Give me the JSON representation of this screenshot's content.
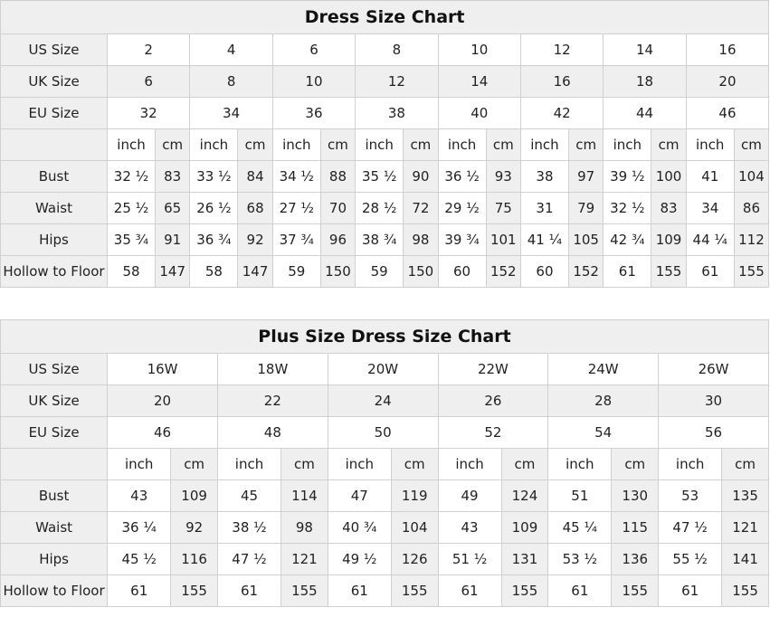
{
  "tables": [
    {
      "title": "Dress Size Chart",
      "us_label": "US Size",
      "uk_label": "UK Size",
      "eu_label": "EU Size",
      "us": [
        "2",
        "4",
        "6",
        "8",
        "10",
        "12",
        "14",
        "16"
      ],
      "uk": [
        "6",
        "8",
        "10",
        "12",
        "14",
        "16",
        "18",
        "20"
      ],
      "eu": [
        "32",
        "34",
        "36",
        "38",
        "40",
        "42",
        "44",
        "46"
      ],
      "units": [
        "inch",
        "cm"
      ],
      "measurements": [
        {
          "label": "Bust",
          "values": [
            "32 ½",
            "83",
            "33 ½",
            "84",
            "34 ½",
            "88",
            "35 ½",
            "90",
            "36 ½",
            "93",
            "38",
            "97",
            "39 ½",
            "100",
            "41",
            "104"
          ]
        },
        {
          "label": "Waist",
          "values": [
            "25 ½",
            "65",
            "26 ½",
            "68",
            "27 ½",
            "70",
            "28 ½",
            "72",
            "29 ½",
            "75",
            "31",
            "79",
            "32 ½",
            "83",
            "34",
            "86"
          ]
        },
        {
          "label": "Hips",
          "values": [
            "35 ¾",
            "91",
            "36 ¾",
            "92",
            "37 ¾",
            "96",
            "38 ¾",
            "98",
            "39 ¾",
            "101",
            "41 ¼",
            "105",
            "42 ¾",
            "109",
            "44 ¼",
            "112"
          ]
        },
        {
          "label": "Hollow to Floor",
          "values": [
            "58",
            "147",
            "58",
            "147",
            "59",
            "150",
            "59",
            "150",
            "60",
            "152",
            "60",
            "152",
            "61",
            "155",
            "61",
            "155"
          ]
        }
      ]
    },
    {
      "title": "Plus Size Dress Size Chart",
      "us_label": "US Size",
      "uk_label": "UK Size",
      "eu_label": "EU Size",
      "us": [
        "16W",
        "18W",
        "20W",
        "22W",
        "24W",
        "26W"
      ],
      "uk": [
        "20",
        "22",
        "24",
        "26",
        "28",
        "30"
      ],
      "eu": [
        "46",
        "48",
        "50",
        "52",
        "54",
        "56"
      ],
      "units": [
        "inch",
        "cm"
      ],
      "measurements": [
        {
          "label": "Bust",
          "values": [
            "43",
            "109",
            "45",
            "114",
            "47",
            "119",
            "49",
            "124",
            "51",
            "130",
            "53",
            "135"
          ]
        },
        {
          "label": "Waist",
          "values": [
            "36 ¼",
            "92",
            "38 ½",
            "98",
            "40 ¾",
            "104",
            "43",
            "109",
            "45 ¼",
            "115",
            "47 ½",
            "121"
          ]
        },
        {
          "label": "Hips",
          "values": [
            "45 ½",
            "116",
            "47 ½",
            "121",
            "49 ½",
            "126",
            "51 ½",
            "131",
            "53 ½",
            "136",
            "55 ½",
            "141"
          ]
        },
        {
          "label": "Hollow to Floor",
          "values": [
            "61",
            "155",
            "61",
            "155",
            "61",
            "155",
            "61",
            "155",
            "61",
            "155",
            "61",
            "155"
          ]
        }
      ]
    }
  ]
}
